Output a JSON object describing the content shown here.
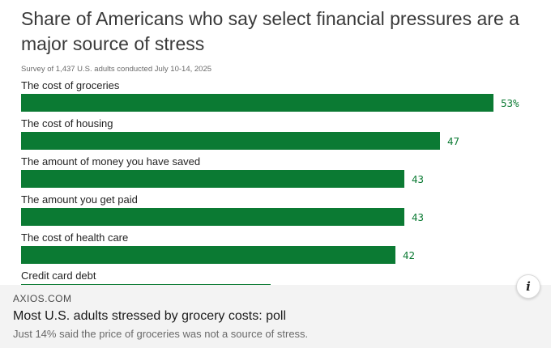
{
  "chart_data": {
    "type": "bar",
    "orientation": "horizontal",
    "title": "Share of Americans who say select financial pressures are a major source of stress",
    "subtitle": "Survey of 1,437 U.S. adults conducted July 10-14, 2025",
    "categories": [
      "The cost of groceries",
      "The cost of housing",
      "The amount of money you have saved",
      "The amount you get paid",
      "The cost of health care",
      "Credit card debt"
    ],
    "values": [
      53,
      47,
      43,
      43,
      42,
      28
    ],
    "value_labels": [
      "53%",
      "47",
      "43",
      "43",
      "42",
      ""
    ],
    "xlim": [
      0,
      100
    ],
    "bar_color": "#0b7a33",
    "grid": false,
    "legend": "none"
  },
  "footer": {
    "source": "AXIOS.COM",
    "headline": "Most U.S. adults stressed by grocery costs: poll",
    "description": "Just 14% said the price of groceries was not a source of stress."
  },
  "info_button": {
    "icon": "info-icon",
    "glyph": "i"
  }
}
